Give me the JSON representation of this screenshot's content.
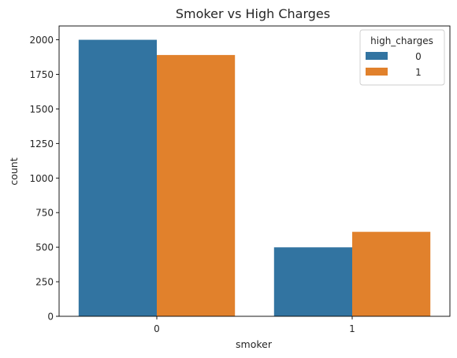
{
  "chart_data": {
    "type": "bar",
    "title": "Smoker vs High Charges",
    "xlabel": "smoker",
    "ylabel": "count",
    "categories": [
      "0",
      "1"
    ],
    "series": [
      {
        "name": "0",
        "color": "#3274a1",
        "values": [
          2000,
          499
        ]
      },
      {
        "name": "1",
        "color": "#e1812c",
        "values": [
          1890,
          611
        ]
      }
    ],
    "ylim": [
      0,
      2100
    ],
    "yticks": [
      0,
      250,
      500,
      750,
      1000,
      1250,
      1500,
      1750,
      2000
    ],
    "legend": {
      "title": "high_charges",
      "placement": "top-right"
    },
    "grid": false
  }
}
